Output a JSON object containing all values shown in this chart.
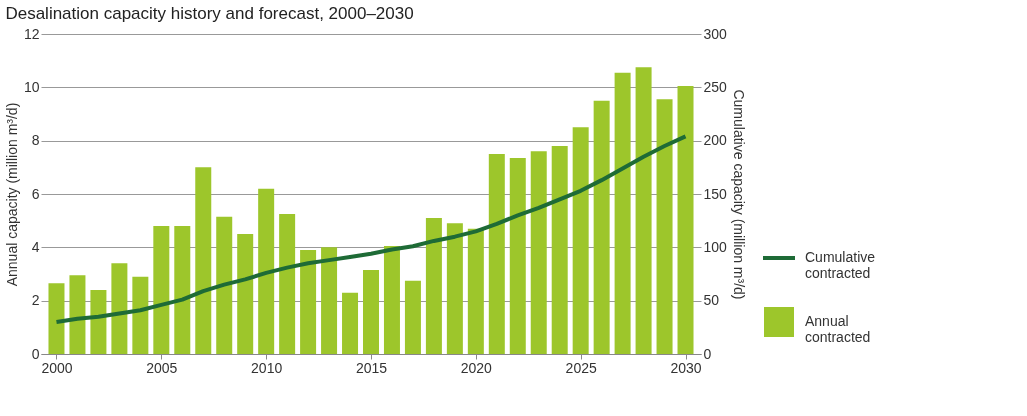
{
  "chart_data": {
    "type": "bar",
    "title": "Desalination capacity history and forecast, 2000–2030",
    "ylabel": "Annual capacity (million m³/d)",
    "y2label": "Cumulative capacity (million m³/d)",
    "x": [
      2000,
      2001,
      2002,
      2003,
      2004,
      2005,
      2006,
      2007,
      2008,
      2009,
      2010,
      2011,
      2012,
      2013,
      2014,
      2015,
      2016,
      2017,
      2018,
      2019,
      2020,
      2021,
      2022,
      2023,
      2024,
      2025,
      2026,
      2027,
      2028,
      2029,
      2030
    ],
    "xlim": [
      1999.5,
      2030.5
    ],
    "xticks": [
      2000,
      2005,
      2010,
      2015,
      2020,
      2025,
      2030
    ],
    "ylim": [
      0,
      12
    ],
    "yticks": [
      0,
      2,
      4,
      6,
      8,
      10,
      12
    ],
    "y2lim": [
      0,
      300
    ],
    "y2ticks": [
      0,
      50,
      100,
      150,
      200,
      250,
      300
    ],
    "series": [
      {
        "name": "Annual contracted",
        "color": "#9dc62b",
        "values": [
          2.65,
          2.95,
          2.4,
          3.4,
          2.9,
          4.8,
          4.8,
          7.0,
          5.15,
          4.5,
          6.2,
          5.25,
          3.9,
          4.0,
          2.3,
          3.15,
          4.05,
          2.75,
          5.1,
          4.9,
          4.7,
          7.5,
          7.35,
          7.6,
          7.8,
          8.5,
          9.5,
          10.55,
          10.75,
          9.55,
          10.05
        ]
      },
      {
        "name": "Cumulative contracted",
        "type": "line",
        "axis": "y2",
        "color": "#1e6b36",
        "values": [
          30,
          33,
          35,
          38,
          41,
          46,
          51,
          59,
          65,
          70,
          76,
          81,
          85,
          88,
          91,
          94,
          98,
          101,
          106,
          110,
          115,
          122,
          130,
          137,
          145,
          153,
          163,
          174,
          185,
          195,
          204
        ]
      }
    ],
    "grid": "y",
    "legend": "bottom right",
    "line_style": "solid",
    "marker": "none"
  }
}
